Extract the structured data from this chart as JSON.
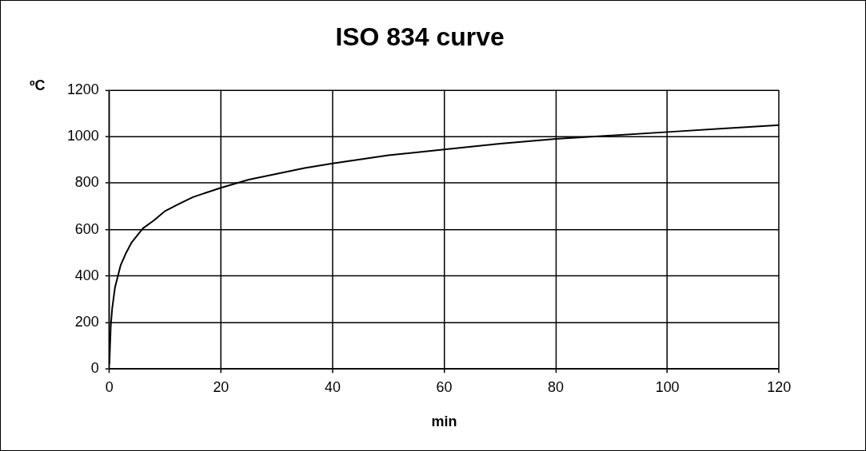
{
  "chart_data": {
    "type": "line",
    "title": "ISO 834 curve",
    "xlabel": "min",
    "ylabel": "ºC",
    "x": [
      0,
      0.25,
      0.5,
      1,
      2,
      3,
      4,
      5,
      6,
      8,
      10,
      12,
      15,
      20,
      25,
      30,
      35,
      40,
      50,
      60,
      70,
      80,
      90,
      100,
      110,
      120
    ],
    "series": [
      {
        "color": "#000000",
        "values": [
          20,
          185,
          260,
          350,
          445,
          500,
          545,
          575,
          605,
          640,
          680,
          705,
          740,
          780,
          815,
          840,
          865,
          885,
          920,
          945,
          970,
          990,
          1005,
          1020,
          1035,
          1050
        ]
      }
    ],
    "xlim": [
      0,
      120
    ],
    "xticks": [
      0,
      20,
      40,
      60,
      80,
      100,
      120
    ],
    "ylim": [
      0,
      1200
    ],
    "yticks": [
      0,
      200,
      400,
      600,
      800,
      1000,
      1200
    ],
    "grid": true,
    "legend": false,
    "marker": "none",
    "line_style": "solid"
  }
}
